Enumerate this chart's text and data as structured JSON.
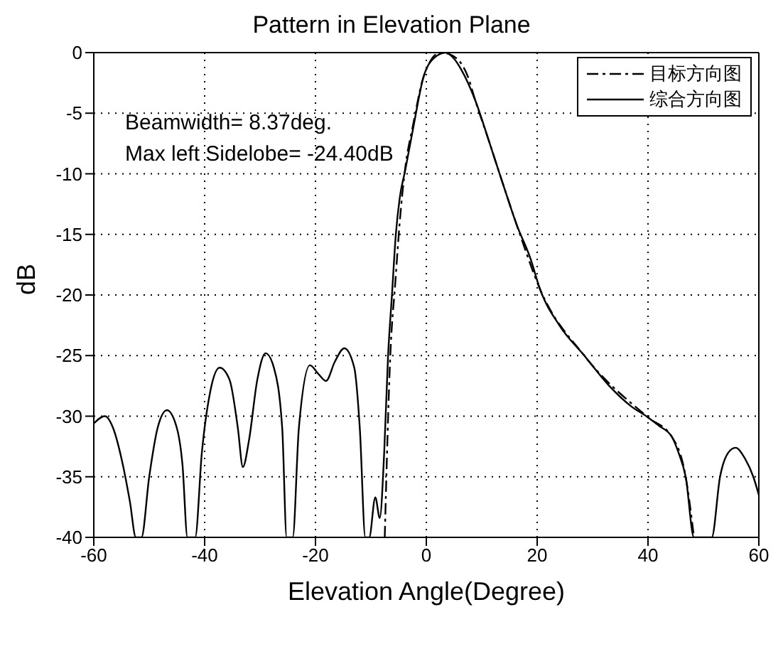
{
  "chart_data": {
    "type": "line",
    "title": "Pattern in Elevation Plane",
    "xlabel": "Elevation Angle(Degree)",
    "ylabel": "dB",
    "xlim": [
      -60,
      60
    ],
    "xticks": [
      -60,
      -40,
      -20,
      0,
      20,
      40,
      60
    ],
    "ylim": [
      -40,
      0
    ],
    "yticks": [
      -40,
      -35,
      -30,
      -25,
      -20,
      -15,
      -10,
      -5,
      0
    ],
    "grid": true,
    "legend": "top right",
    "marker": "none",
    "annotations": [
      "Beamwidth= 8.37deg.",
      "Max left Sidelobe= -24.40dB"
    ],
    "series": [
      {
        "name": "目标方向图",
        "color": "#000000",
        "line_style": "dashed",
        "x": [
          -7.5,
          -6.5,
          -5.6,
          -4.8,
          -3.8,
          -2.4,
          -0.5,
          2.5,
          4.5,
          7.6,
          8.8,
          11.3,
          13.8,
          16.3,
          20.5,
          28.5,
          40,
          44.3,
          46.8,
          48.3
        ],
        "values": [
          -40,
          -25,
          -19,
          -14,
          -9.5,
          -6,
          -2,
          0,
          -0.2,
          -2.1,
          -3.9,
          -7.3,
          -10.8,
          -14.2,
          -19.5,
          -25,
          -30.1,
          -31.7,
          -35,
          -40
        ]
      },
      {
        "name": "综合方向图",
        "color": "#000000",
        "line_style": "solid",
        "x": [
          -60,
          -58,
          -56.5,
          -55,
          -53.5,
          -52.4,
          -51.4,
          -50,
          -48.5,
          -46.8,
          -45,
          -44,
          -43.1,
          -41.7,
          -40.5,
          -39,
          -37.3,
          -35.5,
          -34,
          -33.1,
          -32,
          -30.5,
          -29,
          -27.5,
          -26,
          -25.2,
          -24.1,
          -23,
          -21,
          -19.5,
          -18.1,
          -16.5,
          -14.8,
          -13,
          -12,
          -11,
          -10.3,
          -9.2,
          -8.4,
          -7.6,
          -6.9,
          -6.2,
          -5.5,
          -4.8,
          -3.8,
          -2.4,
          -0.5,
          1.5,
          3.5,
          5,
          6.3,
          8.8,
          11.3,
          13.8,
          16.3,
          18.8,
          20.5,
          24,
          28.5,
          33,
          37,
          40,
          42,
          44.3,
          45.5,
          46.8,
          48.3,
          51.5,
          53,
          54.5,
          55.8,
          57.5,
          59,
          60
        ],
        "values": [
          -30.6,
          -30,
          -31,
          -33.5,
          -37,
          -40,
          -40,
          -35,
          -31,
          -29.5,
          -31,
          -34,
          -40,
          -40,
          -33,
          -28,
          -26,
          -27,
          -31,
          -34.2,
          -32,
          -27,
          -24.8,
          -26,
          -31,
          -40,
          -40,
          -31,
          -25.8,
          -26.5,
          -27.1,
          -25.5,
          -24.4,
          -26,
          -31,
          -40,
          -40,
          -36.7,
          -38.4,
          -33,
          -25,
          -20,
          -15,
          -12,
          -9.7,
          -6.3,
          -2,
          -0.4,
          0,
          -0.5,
          -1.4,
          -3.9,
          -7.3,
          -10.8,
          -14.2,
          -17,
          -19.5,
          -22.5,
          -25,
          -27.5,
          -29.2,
          -30.1,
          -30.8,
          -31.7,
          -33,
          -35,
          -40,
          -40,
          -35,
          -33,
          -32.6,
          -33.5,
          -35,
          -36.5
        ]
      }
    ]
  }
}
